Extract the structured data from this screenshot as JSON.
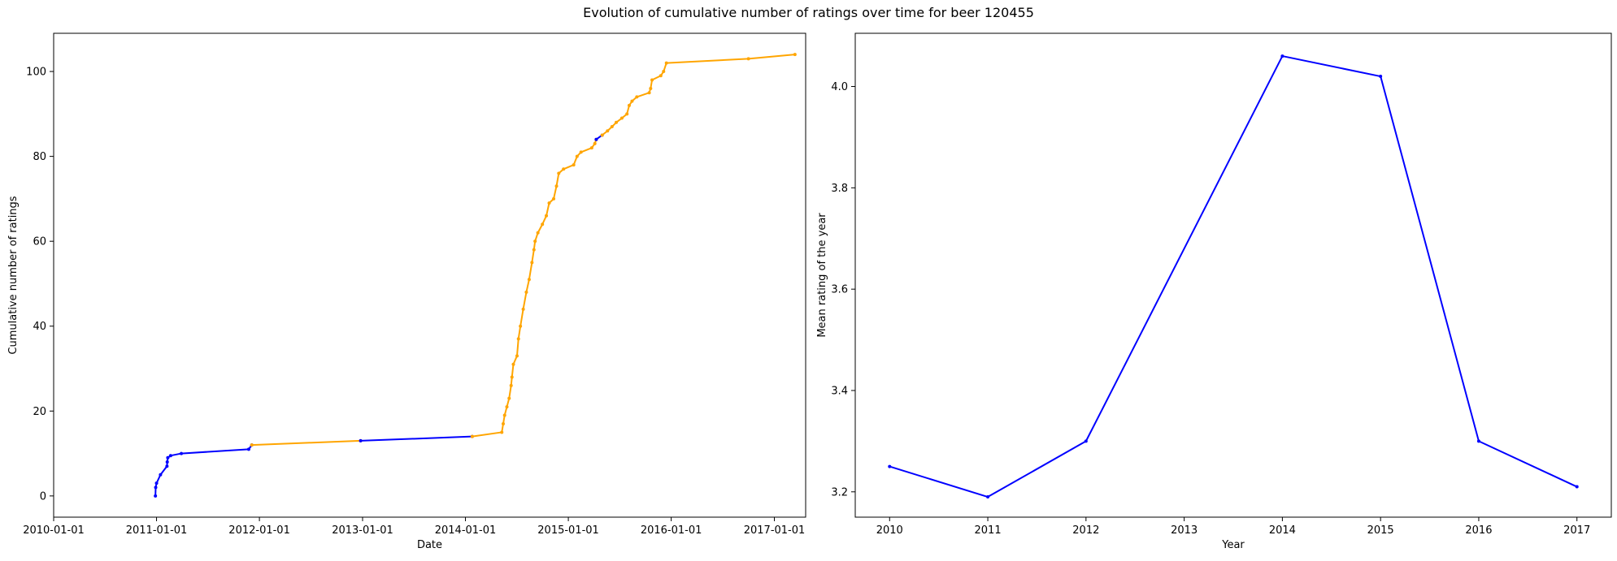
{
  "figure": {
    "title": "Evolution of cumulative number of ratings over time for beer 120455"
  },
  "chart_data": [
    {
      "type": "line",
      "xlabel": "Date",
      "ylabel": "Cumulative number of ratings",
      "x_scale": "date",
      "xlim": [
        "2010-01-01",
        "2017-04-22"
      ],
      "ylim": [
        -5,
        109
      ],
      "xticks": [
        "2010-01-01",
        "2011-01-01",
        "2012-01-01",
        "2013-01-01",
        "2014-01-01",
        "2015-01-01",
        "2016-01-01",
        "2017-01-01"
      ],
      "yticks": [
        0,
        20,
        40,
        60,
        80,
        100
      ],
      "grid": false,
      "series": [
        {
          "color": "#0000ff",
          "points": [
            [
              "2010-12-28",
              0
            ],
            [
              "2010-12-29",
              2
            ],
            [
              "2011-01-01",
              3
            ],
            [
              "2011-01-15",
              5
            ],
            [
              "2011-02-07",
              7
            ],
            [
              "2011-02-08",
              8
            ],
            [
              "2011-02-10",
              9
            ],
            [
              "2011-02-20",
              9.5
            ],
            [
              "2011-03-30",
              10
            ],
            [
              "2011-11-24",
              11
            ],
            [
              "2011-12-05",
              12
            ]
          ]
        },
        {
          "color": "#ffa500",
          "points": [
            [
              "2011-12-05",
              12
            ],
            [
              "2012-12-25",
              13
            ]
          ]
        },
        {
          "color": "#0000ff",
          "points": [
            [
              "2012-12-25",
              13
            ],
            [
              "2014-01-25",
              14
            ]
          ]
        },
        {
          "color": "#ffa500",
          "points": [
            [
              "2014-01-25",
              14
            ],
            [
              "2014-05-10",
              15
            ],
            [
              "2014-05-15",
              17
            ],
            [
              "2014-05-20",
              19
            ],
            [
              "2014-05-28",
              21
            ],
            [
              "2014-06-05",
              23
            ],
            [
              "2014-06-12",
              26
            ],
            [
              "2014-06-15",
              28
            ],
            [
              "2014-06-20",
              31
            ],
            [
              "2014-07-03",
              33
            ],
            [
              "2014-07-08",
              37
            ],
            [
              "2014-07-15",
              40
            ],
            [
              "2014-07-25",
              44
            ],
            [
              "2014-08-05",
              48
            ],
            [
              "2014-08-15",
              51
            ],
            [
              "2014-08-25",
              55
            ],
            [
              "2014-09-01",
              58
            ],
            [
              "2014-09-05",
              60
            ],
            [
              "2014-09-15",
              62
            ],
            [
              "2014-10-01",
              64
            ],
            [
              "2014-10-15",
              66
            ],
            [
              "2014-10-25",
              69
            ],
            [
              "2014-11-10",
              70
            ],
            [
              "2014-11-20",
              73
            ],
            [
              "2014-11-28",
              76
            ],
            [
              "2014-12-15",
              77
            ],
            [
              "2015-01-20",
              78
            ],
            [
              "2015-02-01",
              80
            ],
            [
              "2015-02-15",
              81
            ],
            [
              "2015-03-25",
              82
            ],
            [
              "2015-04-05",
              83
            ],
            [
              "2015-04-10",
              84
            ]
          ]
        },
        {
          "color": "#0000ff",
          "points": [
            [
              "2015-04-10",
              84
            ],
            [
              "2015-05-01",
              85
            ]
          ]
        },
        {
          "color": "#ffa500",
          "points": [
            [
              "2015-05-01",
              85
            ],
            [
              "2015-05-20",
              86
            ],
            [
              "2015-06-05",
              87
            ],
            [
              "2015-06-20",
              88
            ],
            [
              "2015-07-10",
              89
            ],
            [
              "2015-07-28",
              90
            ],
            [
              "2015-08-05",
              92
            ],
            [
              "2015-08-15",
              93
            ],
            [
              "2015-09-01",
              94
            ],
            [
              "2015-10-15",
              95
            ],
            [
              "2015-10-20",
              96
            ],
            [
              "2015-10-25",
              98
            ],
            [
              "2015-11-25",
              99
            ],
            [
              "2015-12-05",
              100
            ],
            [
              "2015-12-15",
              102
            ],
            [
              "2016-10-01",
              103
            ],
            [
              "2017-03-15",
              104
            ]
          ]
        }
      ]
    },
    {
      "type": "line",
      "xlabel": "Year",
      "ylabel": "Mean rating of the year",
      "xlim": [
        2009.65,
        2017.35
      ],
      "ylim": [
        3.15,
        4.105
      ],
      "xticks": [
        2010,
        2011,
        2012,
        2013,
        2014,
        2015,
        2016,
        2017
      ],
      "yticks": [
        3.2,
        3.4,
        3.6,
        3.8,
        4.0
      ],
      "ytick_labels": [
        "3.2",
        "3.4",
        "3.6",
        "3.8",
        "4.0"
      ],
      "grid": false,
      "series": [
        {
          "color": "#0000ff",
          "x": [
            2010,
            2011,
            2012,
            2014,
            2015,
            2016,
            2017
          ],
          "y": [
            3.25,
            3.19,
            3.3,
            4.06,
            4.02,
            3.3,
            3.21
          ]
        }
      ]
    }
  ]
}
